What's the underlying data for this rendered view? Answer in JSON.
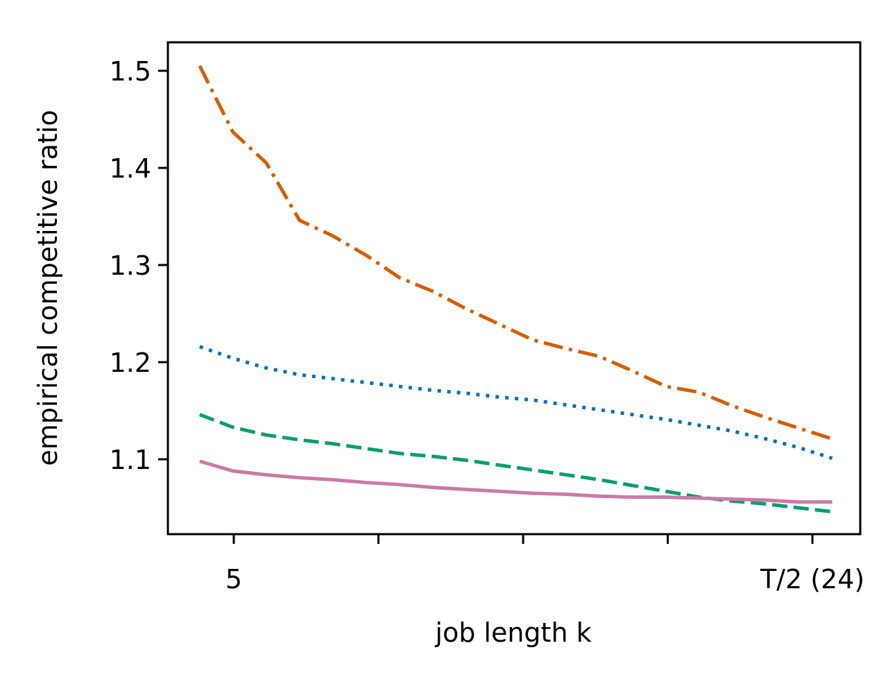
{
  "chart_data": {
    "type": "line",
    "xlabel": "job length k",
    "ylabel": "empirical competitive ratio",
    "x": [
      3.88,
      4.97,
      6.07,
      7.16,
      8.25,
      9.35,
      10.44,
      11.53,
      12.63,
      13.72,
      14.81,
      15.91,
      17.0,
      18.09,
      19.19,
      20.28,
      21.37,
      22.47,
      23.56,
      24.65
    ],
    "series": [
      {
        "color": "#d55e00",
        "linestyle": "dashdot",
        "values": [
          1.505,
          1.437,
          1.405,
          1.346,
          1.33,
          1.31,
          1.287,
          1.273,
          1.255,
          1.239,
          1.223,
          1.214,
          1.206,
          1.191,
          1.175,
          1.169,
          1.155,
          1.143,
          1.132,
          1.121
        ]
      },
      {
        "color": "#0072b2",
        "linestyle": "dotted",
        "values": [
          1.216,
          1.204,
          1.194,
          1.187,
          1.183,
          1.179,
          1.175,
          1.171,
          1.168,
          1.164,
          1.161,
          1.156,
          1.151,
          1.146,
          1.141,
          1.135,
          1.129,
          1.121,
          1.112,
          1.101
        ]
      },
      {
        "color": "#009e73",
        "linestyle": "dashed",
        "values": [
          1.146,
          1.133,
          1.125,
          1.12,
          1.116,
          1.111,
          1.106,
          1.103,
          1.099,
          1.094,
          1.089,
          1.084,
          1.079,
          1.073,
          1.067,
          1.061,
          1.057,
          1.054,
          1.05,
          1.046
        ]
      },
      {
        "color": "#cc79a7",
        "linestyle": "solid",
        "values": [
          1.098,
          1.088,
          1.084,
          1.081,
          1.079,
          1.076,
          1.074,
          1.071,
          1.069,
          1.067,
          1.065,
          1.064,
          1.062,
          1.061,
          1.061,
          1.06,
          1.059,
          1.058,
          1.056,
          1.056
        ]
      }
    ],
    "xlim": [
      2.836,
      25.57
    ],
    "ylim": [
      1.0229,
      1.5293
    ],
    "xticks": [
      5,
      {
        "value": 9.75,
        "label": null
      },
      {
        "value": 14.5,
        "label": null
      },
      {
        "value": 19.25,
        "label": null
      },
      {
        "value": 24,
        "label": "T/2 (24)"
      }
    ],
    "yticks": [
      1.1,
      1.2,
      1.3,
      1.4,
      1.5
    ],
    "grid": false
  }
}
